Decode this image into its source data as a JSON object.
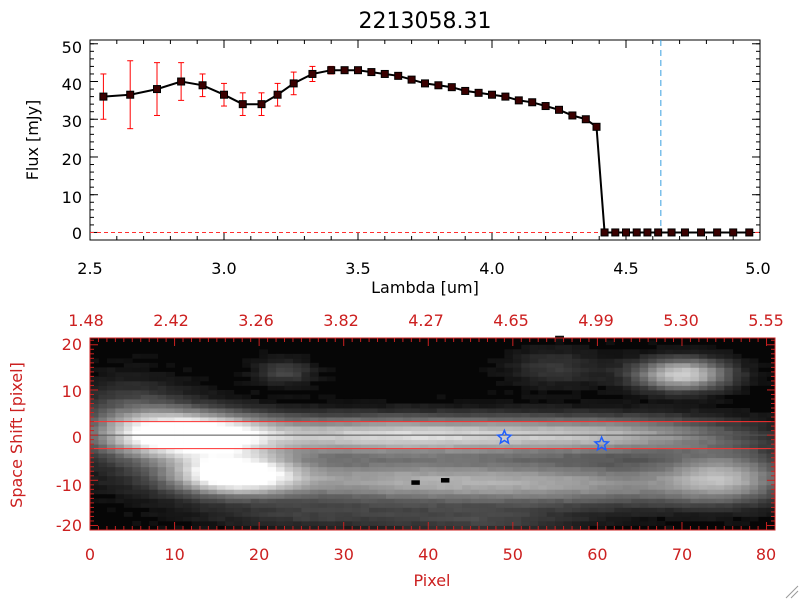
{
  "chart_data": [
    {
      "type": "line",
      "title": "2213058.31",
      "xlabel": "Lambda [um]",
      "ylabel": "Flux [mJy]",
      "xlim": [
        2.5,
        5.0
      ],
      "ylim": [
        -2,
        51
      ],
      "xticks": [
        "2.5",
        "3.0",
        "3.5",
        "4.0",
        "4.5",
        "5.0"
      ],
      "yticks": [
        "0",
        "10",
        "20",
        "30",
        "40",
        "50"
      ],
      "xtick_values": [
        2.5,
        3.0,
        3.5,
        4.0,
        4.5,
        5.0
      ],
      "ytick_values": [
        0,
        10,
        20,
        30,
        40,
        50
      ],
      "vline_x": 4.63,
      "hline_y": 0,
      "series": [
        {
          "name": "flux",
          "x": [
            2.55,
            2.65,
            2.75,
            2.84,
            2.92,
            3.0,
            3.07,
            3.14,
            3.2,
            3.26,
            3.33,
            3.4,
            3.45,
            3.5,
            3.55,
            3.6,
            3.65,
            3.7,
            3.75,
            3.8,
            3.85,
            3.9,
            3.95,
            4.0,
            4.05,
            4.1,
            4.15,
            4.2,
            4.25,
            4.3,
            4.35,
            4.39,
            4.42,
            4.46,
            4.5,
            4.54,
            4.58,
            4.62,
            4.67,
            4.72,
            4.78,
            4.84,
            4.9,
            4.96
          ],
          "y": [
            36,
            36.5,
            38,
            40,
            39,
            36.5,
            34,
            34,
            36.5,
            39.5,
            42,
            43,
            43,
            43,
            42.5,
            42,
            41.5,
            40.5,
            39.5,
            39,
            38.5,
            37.5,
            37,
            36.5,
            36,
            35,
            34.5,
            33.5,
            32.5,
            31,
            30,
            28,
            0,
            0,
            0,
            0,
            0,
            0,
            0,
            0,
            0,
            0,
            0,
            0
          ],
          "err": [
            6,
            9,
            7,
            5,
            3,
            3,
            3,
            3,
            3,
            3,
            2,
            1,
            0,
            0,
            0,
            0,
            0,
            0,
            0,
            0,
            0,
            0,
            0,
            0,
            0,
            0,
            0,
            0,
            0,
            0,
            0,
            0,
            0,
            0,
            0,
            0,
            0,
            0,
            0,
            0,
            0,
            0,
            0,
            0
          ],
          "line_color": "#000000",
          "marker_color": "#3a0000",
          "error_color": "#ff0000"
        }
      ]
    },
    {
      "type": "heatmap",
      "xlabel": "Pixel",
      "ylabel": "Space Shift [pixel]",
      "xlim": [
        0,
        81
      ],
      "ylim": [
        -21,
        21.5
      ],
      "xticks": [
        "0",
        "10",
        "20",
        "30",
        "40",
        "50",
        "60",
        "70",
        "80"
      ],
      "xtick_values": [
        0,
        10,
        20,
        30,
        40,
        50,
        60,
        70,
        80
      ],
      "yticks": [
        "-20",
        "-10",
        "0",
        "10",
        "20"
      ],
      "ytick_values": [
        -20,
        -10,
        0,
        10,
        20
      ],
      "top_axis_labels": [
        "1.48",
        "2.42",
        "3.26",
        "3.82",
        "4.27",
        "4.65",
        "4.99",
        "5.30",
        "5.55"
      ],
      "top_axis_positions": [
        0,
        10,
        20,
        30,
        40,
        50,
        60,
        70,
        80
      ],
      "aperture_y": [
        -3,
        3
      ],
      "center_line_y": 0,
      "markers": [
        {
          "name": "source-star",
          "x": 49,
          "y": -0.5
        },
        {
          "name": "target-star",
          "x": 60.5,
          "y": -2
        }
      ],
      "axis_color": "#cc2020",
      "marker_color": "#1f5fff",
      "aperture_color": "#ff3030"
    }
  ]
}
